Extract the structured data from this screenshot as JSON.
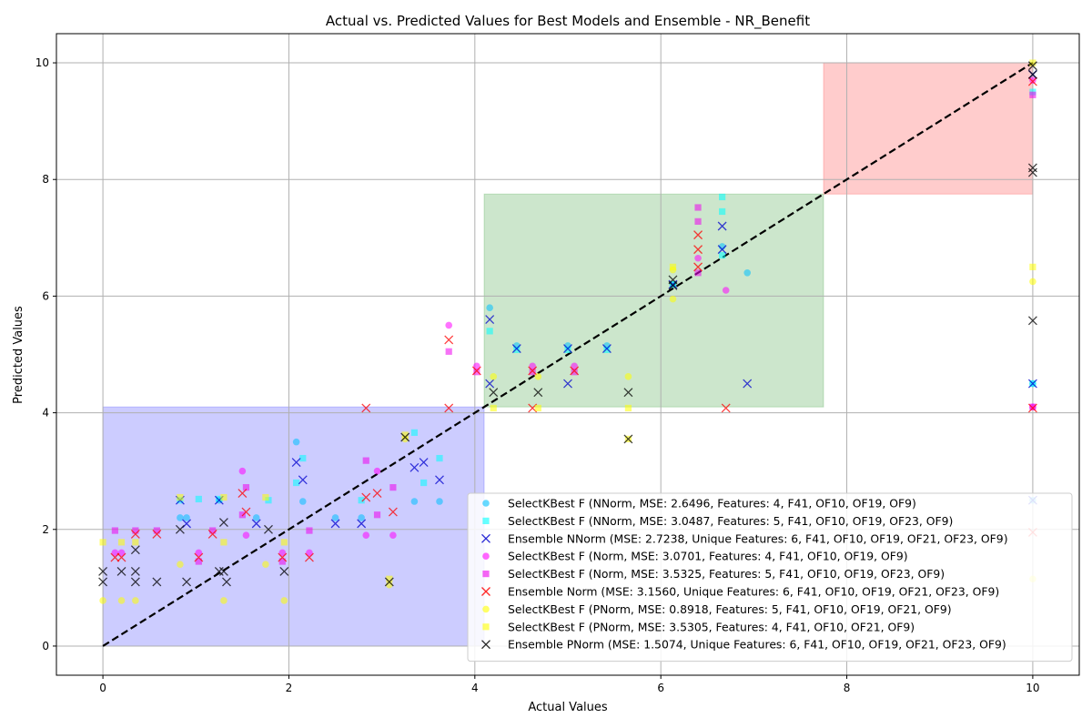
{
  "chart_data": {
    "type": "scatter",
    "title": "Actual vs. Predicted Values for Best Models and Ensemble - NR_Benefit",
    "xlabel": "Actual Values",
    "ylabel": "Predicted Values",
    "xlim": [
      -0.5,
      10.5
    ],
    "ylim": [
      -0.5,
      10.5
    ],
    "xticks": [
      0,
      2,
      4,
      6,
      8,
      10
    ],
    "yticks": [
      0,
      2,
      4,
      6,
      8,
      10
    ],
    "grid": true,
    "legend_position": "lower-right",
    "reference_line": {
      "style": "dashed",
      "color": "#000000",
      "from": [
        0,
        0
      ],
      "to": [
        10,
        10
      ]
    },
    "regions": [
      {
        "x": [
          0,
          4.1
        ],
        "y": [
          0,
          4.1
        ],
        "color": "#0000ff",
        "opacity": 0.2
      },
      {
        "x": [
          4.1,
          7.75
        ],
        "y": [
          4.1,
          7.75
        ],
        "color": "#008000",
        "opacity": 0.2
      },
      {
        "x": [
          7.75,
          10
        ],
        "y": [
          7.75,
          10
        ],
        "color": "#ff0000",
        "opacity": 0.2
      }
    ],
    "series": [
      {
        "name": "SelectKBest F (NNorm, MSE: 2.6496, Features: 4, F41, OF10, OF19, OF9)",
        "marker": "circle",
        "color": "#00bfff",
        "points": [
          [
            0.83,
            2.2
          ],
          [
            0.9,
            2.2
          ],
          [
            1.25,
            2.5
          ],
          [
            1.65,
            2.2
          ],
          [
            2.08,
            3.5
          ],
          [
            2.15,
            2.48
          ],
          [
            2.5,
            2.2
          ],
          [
            2.78,
            2.2
          ],
          [
            3.35,
            2.48
          ],
          [
            3.62,
            2.48
          ],
          [
            4.16,
            5.8
          ],
          [
            4.45,
            5.15
          ],
          [
            5.0,
            5.15
          ],
          [
            5.42,
            5.15
          ],
          [
            6.13,
            6.2
          ],
          [
            6.66,
            6.85
          ],
          [
            6.93,
            6.4
          ],
          [
            10.0,
            4.5
          ],
          [
            10.0,
            2.5
          ]
        ]
      },
      {
        "name": "SelectKBest F (NNorm, MSE: 3.0487, Features: 5, F41, OF10, OF19, OF23, OF9)",
        "marker": "square",
        "color": "#00ffff",
        "points": [
          [
            0.83,
            2.5
          ],
          [
            1.03,
            2.52
          ],
          [
            1.25,
            2.52
          ],
          [
            1.78,
            2.5
          ],
          [
            2.08,
            2.8
          ],
          [
            2.15,
            3.22
          ],
          [
            2.78,
            2.5
          ],
          [
            3.35,
            3.66
          ],
          [
            3.45,
            2.8
          ],
          [
            3.62,
            3.22
          ],
          [
            4.16,
            5.4
          ],
          [
            4.45,
            5.08
          ],
          [
            5.0,
            5.08
          ],
          [
            5.42,
            5.08
          ],
          [
            6.13,
            6.2
          ],
          [
            6.66,
            7.7
          ],
          [
            6.66,
            7.45
          ],
          [
            6.66,
            6.7
          ],
          [
            10.0,
            9.5
          ],
          [
            10.0,
            4.5
          ]
        ]
      },
      {
        "name": "Ensemble NNorm (MSE: 2.7238, Unique Features: 6, F41, OF10, OF19, OF21, OF23, OF9)",
        "marker": "x",
        "color": "#0000cd",
        "points": [
          [
            0.83,
            2.5
          ],
          [
            0.9,
            2.1
          ],
          [
            1.25,
            2.5
          ],
          [
            1.65,
            2.1
          ],
          [
            2.08,
            3.15
          ],
          [
            2.15,
            2.85
          ],
          [
            2.5,
            2.1
          ],
          [
            2.78,
            2.1
          ],
          [
            3.35,
            3.06
          ],
          [
            3.45,
            3.15
          ],
          [
            3.62,
            2.85
          ],
          [
            4.16,
            5.6
          ],
          [
            4.16,
            4.5
          ],
          [
            4.45,
            5.1
          ],
          [
            5.0,
            5.1
          ],
          [
            5.0,
            4.5
          ],
          [
            5.42,
            5.1
          ],
          [
            6.13,
            6.2
          ],
          [
            6.66,
            7.2
          ],
          [
            6.66,
            6.8
          ],
          [
            6.93,
            4.5
          ],
          [
            10.0,
            9.8
          ],
          [
            10.0,
            4.5
          ],
          [
            10.0,
            2.5
          ]
        ]
      },
      {
        "name": "SelectKBest F (Norm, MSE: 3.0701, Features: 4, F41, OF10, OF19, OF9)",
        "marker": "circle",
        "color": "#ff00ff",
        "points": [
          [
            0.13,
            1.6
          ],
          [
            0.2,
            1.6
          ],
          [
            1.03,
            1.6
          ],
          [
            1.5,
            3.0
          ],
          [
            1.54,
            1.9
          ],
          [
            1.93,
            1.6
          ],
          [
            2.22,
            1.6
          ],
          [
            2.83,
            1.9
          ],
          [
            2.95,
            3.0
          ],
          [
            3.12,
            1.9
          ],
          [
            3.72,
            5.5
          ],
          [
            4.02,
            4.8
          ],
          [
            4.62,
            4.8
          ],
          [
            5.07,
            4.8
          ],
          [
            6.4,
            6.65
          ],
          [
            6.7,
            6.1
          ],
          [
            10.0,
            9.7
          ],
          [
            10.0,
            4.1
          ]
        ]
      },
      {
        "name": "SelectKBest F (Norm, MSE: 3.5325, Features: 5, F41, OF10, OF19, OF23, OF9)",
        "marker": "square",
        "color": "#ee00ee",
        "points": [
          [
            0.13,
            1.98
          ],
          [
            0.35,
            1.98
          ],
          [
            0.58,
            1.98
          ],
          [
            1.03,
            1.45
          ],
          [
            1.18,
            1.98
          ],
          [
            1.5,
            2.25
          ],
          [
            1.54,
            2.72
          ],
          [
            1.93,
            1.45
          ],
          [
            2.22,
            1.98
          ],
          [
            2.83,
            3.18
          ],
          [
            2.95,
            2.25
          ],
          [
            3.12,
            2.72
          ],
          [
            3.72,
            5.05
          ],
          [
            4.02,
            4.7
          ],
          [
            4.62,
            4.7
          ],
          [
            5.07,
            4.7
          ],
          [
            6.4,
            7.52
          ],
          [
            6.4,
            7.28
          ],
          [
            6.4,
            6.4
          ],
          [
            10.0,
            9.45
          ],
          [
            10.0,
            4.1
          ]
        ]
      },
      {
        "name": "Ensemble Norm (MSE: 3.1560, Unique Features: 6, F41, OF10, OF19, OF21, OF23, OF9)",
        "marker": "x",
        "color": "#ff0000",
        "points": [
          [
            0.13,
            1.52
          ],
          [
            0.2,
            1.52
          ],
          [
            0.35,
            1.92
          ],
          [
            0.58,
            1.92
          ],
          [
            1.03,
            1.52
          ],
          [
            1.18,
            1.92
          ],
          [
            1.5,
            2.62
          ],
          [
            1.54,
            2.3
          ],
          [
            1.93,
            1.52
          ],
          [
            2.22,
            1.52
          ],
          [
            2.83,
            4.08
          ],
          [
            2.83,
            2.55
          ],
          [
            2.95,
            2.62
          ],
          [
            3.12,
            2.3
          ],
          [
            3.72,
            5.25
          ],
          [
            3.72,
            4.08
          ],
          [
            4.02,
            4.72
          ],
          [
            4.62,
            4.72
          ],
          [
            4.62,
            4.08
          ],
          [
            5.07,
            4.72
          ],
          [
            6.4,
            7.05
          ],
          [
            6.4,
            6.8
          ],
          [
            6.4,
            6.5
          ],
          [
            6.7,
            4.08
          ],
          [
            10.0,
            9.68
          ],
          [
            10.0,
            4.08
          ],
          [
            10.0,
            1.95
          ]
        ]
      },
      {
        "name": "SelectKBest F (PNorm, MSE: 0.8918, Features: 5, F41, OF10, OF19, OF21, OF9)",
        "marker": "circle",
        "color": "#ffff00",
        "points": [
          [
            0.0,
            0.78
          ],
          [
            0.2,
            0.78
          ],
          [
            0.35,
            0.78
          ],
          [
            0.83,
            1.4
          ],
          [
            1.3,
            0.78
          ],
          [
            1.75,
            1.4
          ],
          [
            1.95,
            0.78
          ],
          [
            3.08,
            1.05
          ],
          [
            3.25,
            3.55
          ],
          [
            4.2,
            4.62
          ],
          [
            4.68,
            4.62
          ],
          [
            5.65,
            4.62
          ],
          [
            6.13,
            5.95
          ],
          [
            6.13,
            6.45
          ],
          [
            10.0,
            6.25
          ],
          [
            10.0,
            1.15
          ]
        ]
      },
      {
        "name": "SelectKBest F (PNorm, MSE: 3.5305, Features: 4, F41, OF10, OF21, OF9)",
        "marker": "square",
        "color": "#ffff00",
        "points": [
          [
            0.0,
            1.78
          ],
          [
            0.2,
            1.78
          ],
          [
            0.35,
            1.78
          ],
          [
            0.83,
            2.55
          ],
          [
            1.3,
            1.78
          ],
          [
            1.3,
            2.55
          ],
          [
            1.75,
            2.55
          ],
          [
            1.95,
            1.78
          ],
          [
            3.08,
            1.15
          ],
          [
            3.25,
            3.62
          ],
          [
            4.2,
            4.08
          ],
          [
            4.68,
            4.08
          ],
          [
            5.65,
            3.55
          ],
          [
            5.65,
            4.08
          ],
          [
            6.13,
            6.5
          ],
          [
            10.0,
            10.0
          ],
          [
            10.0,
            6.5
          ]
        ]
      },
      {
        "name": "Ensemble PNorm (MSE: 1.5074, Unique Features: 6, F41, OF10, OF19, OF21, OF23, OF9)",
        "marker": "x",
        "color": "#000000",
        "points": [
          [
            0.0,
            1.28
          ],
          [
            0.0,
            1.1
          ],
          [
            0.2,
            1.28
          ],
          [
            0.35,
            1.65
          ],
          [
            0.35,
            1.28
          ],
          [
            0.35,
            1.1
          ],
          [
            0.58,
            1.1
          ],
          [
            0.83,
            2.0
          ],
          [
            0.9,
            1.1
          ],
          [
            1.25,
            1.28
          ],
          [
            1.3,
            2.12
          ],
          [
            1.3,
            1.28
          ],
          [
            1.33,
            1.1
          ],
          [
            1.78,
            2.0
          ],
          [
            1.95,
            1.28
          ],
          [
            3.08,
            1.1
          ],
          [
            3.25,
            3.58
          ],
          [
            4.2,
            4.35
          ],
          [
            4.68,
            4.35
          ],
          [
            5.65,
            4.35
          ],
          [
            5.65,
            3.55
          ],
          [
            6.13,
            6.28
          ],
          [
            6.13,
            6.18
          ],
          [
            10.0,
            9.95
          ],
          [
            10.0,
            9.8
          ],
          [
            10.0,
            8.2
          ],
          [
            10.0,
            8.12
          ],
          [
            10.0,
            5.58
          ]
        ]
      }
    ]
  }
}
